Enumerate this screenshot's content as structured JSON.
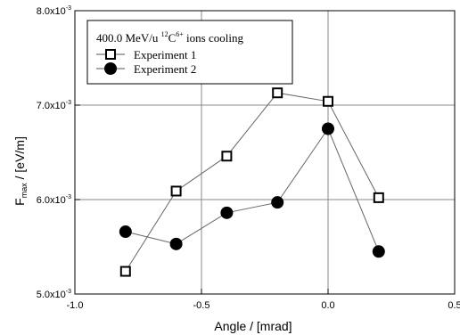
{
  "chart_data": {
    "type": "scatter",
    "title": "",
    "xlabel": "Angle / [mrad]",
    "ylabel": {
      "main": "F",
      "sub": "max",
      "rest": " / [eV/m]"
    },
    "xlim": [
      -1.0,
      0.5
    ],
    "ylim": [
      0.005,
      0.008
    ],
    "x_ticks": [
      {
        "value": -1.0,
        "label": "-1.0"
      },
      {
        "value": -0.5,
        "label": "-0.5"
      },
      {
        "value": 0.0,
        "label": "0.0"
      },
      {
        "value": 0.5,
        "label": "0.5"
      }
    ],
    "y_ticks": [
      {
        "value": 0.005,
        "mant": "5.0x10",
        "exp": "-3"
      },
      {
        "value": 0.006,
        "mant": "6.0x10",
        "exp": "-3"
      },
      {
        "value": 0.007,
        "mant": "7.0x10",
        "exp": "-3"
      },
      {
        "value": 0.008,
        "mant": "8.0x10",
        "exp": "-3"
      }
    ],
    "grid": true,
    "legend_position": "top-left",
    "legend_title": {
      "p1": "400.0 MeV/u ",
      "sup1": "12",
      "p2": "C",
      "sup2": "6+",
      "p3": " ions cooling"
    },
    "series": [
      {
        "name": "Experiment 1",
        "marker": "open-square",
        "x": [
          -0.8,
          -0.6,
          -0.4,
          -0.2,
          0.0,
          0.2
        ],
        "y": [
          0.00524,
          0.00609,
          0.00646,
          0.00713,
          0.00704,
          0.00602
        ]
      },
      {
        "name": "Experiment 2",
        "marker": "filled-circle",
        "x": [
          -0.8,
          -0.6,
          -0.4,
          -0.2,
          0.0,
          0.2
        ],
        "y": [
          0.00566,
          0.00553,
          0.00586,
          0.00597,
          0.00675,
          0.00545
        ]
      }
    ]
  }
}
